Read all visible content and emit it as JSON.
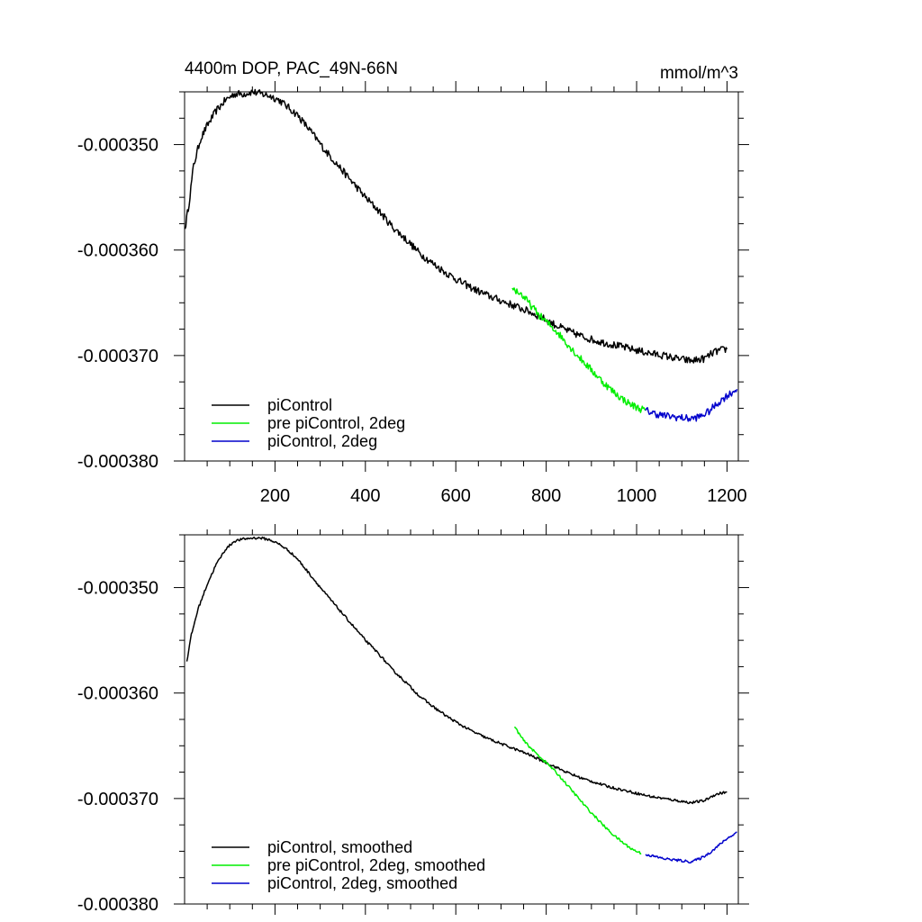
{
  "chart_data": [
    {
      "type": "line",
      "title_left": "4400m DOP, PAC_49N-66N",
      "title_right": "mmol/m^3",
      "xlim": [
        0,
        1225
      ],
      "ylim": [
        -0.00038,
        -0.000345
      ],
      "xticks": [
        200,
        400,
        600,
        800,
        1000,
        1200
      ],
      "xtick_labels": [
        "200",
        "400",
        "600",
        "800",
        "1000",
        "1200"
      ],
      "yticks": [
        -0.00035,
        -0.00036,
        -0.00037,
        -0.00038
      ],
      "ytick_labels": [
        "-0.000350",
        "-0.000360",
        "-0.000370",
        "-0.000380"
      ],
      "show_x_labels": true,
      "noise": 3.5e-07,
      "series": [
        {
          "name": "piControl",
          "color": "#000000",
          "x": [
            1,
            10,
            20,
            35,
            50,
            70,
            90,
            110,
            130,
            150,
            170,
            190,
            210,
            230,
            250,
            280,
            310,
            340,
            370,
            400,
            430,
            460,
            490,
            520,
            550,
            580,
            610,
            640,
            670,
            700,
            730,
            760,
            790,
            820,
            850,
            880,
            910,
            940,
            970,
            1000,
            1030,
            1060,
            1090,
            1120,
            1150,
            1170,
            1185,
            1200
          ],
          "y": [
            -0.000358,
            -0.0003555,
            -0.000352,
            -0.0003495,
            -0.0003482,
            -0.0003468,
            -0.0003458,
            -0.0003452,
            -0.0003452,
            -0.000345,
            -0.0003452,
            -0.0003454,
            -0.0003458,
            -0.0003465,
            -0.0003472,
            -0.0003488,
            -0.0003505,
            -0.000352,
            -0.0003535,
            -0.000355,
            -0.0003563,
            -0.0003578,
            -0.000359,
            -0.0003603,
            -0.0003613,
            -0.0003622,
            -0.000363,
            -0.0003637,
            -0.0003643,
            -0.0003648,
            -0.0003653,
            -0.0003658,
            -0.0003664,
            -0.0003671,
            -0.0003677,
            -0.0003682,
            -0.0003686,
            -0.0003689,
            -0.0003692,
            -0.0003695,
            -0.0003698,
            -0.00037,
            -0.0003703,
            -0.0003705,
            -0.0003703,
            -0.0003697,
            -0.0003695,
            -0.0003694
          ]
        },
        {
          "name": "pre piControl, 2deg",
          "color": "#00ee00",
          "x": [
            725,
            745,
            765,
            785,
            805,
            825,
            845,
            865,
            885,
            905,
            925,
            945,
            965,
            985,
            1005,
            1020
          ],
          "y": [
            -0.0003636,
            -0.0003642,
            -0.0003652,
            -0.0003662,
            -0.000367,
            -0.0003678,
            -0.0003688,
            -0.0003698,
            -0.0003707,
            -0.0003716,
            -0.0003725,
            -0.0003733,
            -0.000374,
            -0.0003746,
            -0.000375,
            -0.0003752
          ]
        },
        {
          "name": "piControl, 2deg",
          "color": "#0000cc",
          "x": [
            1020,
            1040,
            1060,
            1080,
            1100,
            1120,
            1140,
            1160,
            1180,
            1200,
            1222
          ],
          "y": [
            -0.0003752,
            -0.0003755,
            -0.0003757,
            -0.0003758,
            -0.0003759,
            -0.000376,
            -0.0003758,
            -0.0003753,
            -0.0003745,
            -0.0003738,
            -0.0003732
          ]
        }
      ]
    },
    {
      "type": "line",
      "title_left": "",
      "title_right": "",
      "xlim": [
        0,
        1225
      ],
      "ylim": [
        -0.00038,
        -0.000345
      ],
      "xticks": [
        200,
        400,
        600,
        800,
        1000,
        1200
      ],
      "xtick_labels": [],
      "yticks": [
        -0.00035,
        -0.00036,
        -0.00037,
        -0.00038
      ],
      "ytick_labels": [
        "-0.000350",
        "-0.000360",
        "-0.000370",
        "-0.000380"
      ],
      "show_x_labels": false,
      "noise": 1.2e-07,
      "series": [
        {
          "name": "piControl, smoothed",
          "color": "#000000",
          "x": [
            5,
            15,
            30,
            50,
            70,
            90,
            110,
            130,
            150,
            170,
            190,
            210,
            230,
            250,
            280,
            310,
            340,
            370,
            400,
            430,
            460,
            490,
            520,
            550,
            580,
            610,
            640,
            670,
            700,
            730,
            760,
            790,
            820,
            850,
            880,
            910,
            940,
            970,
            1000,
            1030,
            1060,
            1090,
            1120,
            1150,
            1170,
            1185,
            1200
          ],
          "y": [
            -0.000357,
            -0.0003545,
            -0.000352,
            -0.0003497,
            -0.0003478,
            -0.0003464,
            -0.0003456,
            -0.0003454,
            -0.0003453,
            -0.0003453,
            -0.0003455,
            -0.0003459,
            -0.0003465,
            -0.0003473,
            -0.0003489,
            -0.0003505,
            -0.000352,
            -0.0003535,
            -0.000355,
            -0.0003563,
            -0.0003578,
            -0.000359,
            -0.0003603,
            -0.0003613,
            -0.0003622,
            -0.000363,
            -0.0003637,
            -0.0003643,
            -0.0003648,
            -0.0003653,
            -0.0003658,
            -0.0003664,
            -0.000367,
            -0.0003676,
            -0.0003681,
            -0.0003685,
            -0.0003689,
            -0.0003692,
            -0.0003695,
            -0.0003698,
            -0.00037,
            -0.0003702,
            -0.0003704,
            -0.0003702,
            -0.0003697,
            -0.0003695,
            -0.0003694
          ]
        },
        {
          "name": "pre piControl, 2deg, smoothed",
          "color": "#00ee00",
          "x": [
            730,
            750,
            770,
            790,
            810,
            830,
            850,
            870,
            890,
            910,
            930,
            950,
            970,
            990,
            1010
          ],
          "y": [
            -0.0003632,
            -0.0003645,
            -0.0003654,
            -0.0003662,
            -0.000367,
            -0.0003679,
            -0.0003689,
            -0.0003699,
            -0.0003709,
            -0.0003718,
            -0.0003727,
            -0.0003735,
            -0.0003742,
            -0.0003748,
            -0.0003752
          ]
        },
        {
          "name": "piControl, 2deg, smoothed",
          "color": "#0000cc",
          "x": [
            1020,
            1040,
            1060,
            1080,
            1100,
            1120,
            1140,
            1160,
            1180,
            1200,
            1222
          ],
          "y": [
            -0.0003753,
            -0.0003755,
            -0.0003757,
            -0.0003758,
            -0.0003759,
            -0.000376,
            -0.0003757,
            -0.0003752,
            -0.0003745,
            -0.0003738,
            -0.0003732
          ]
        }
      ]
    }
  ]
}
